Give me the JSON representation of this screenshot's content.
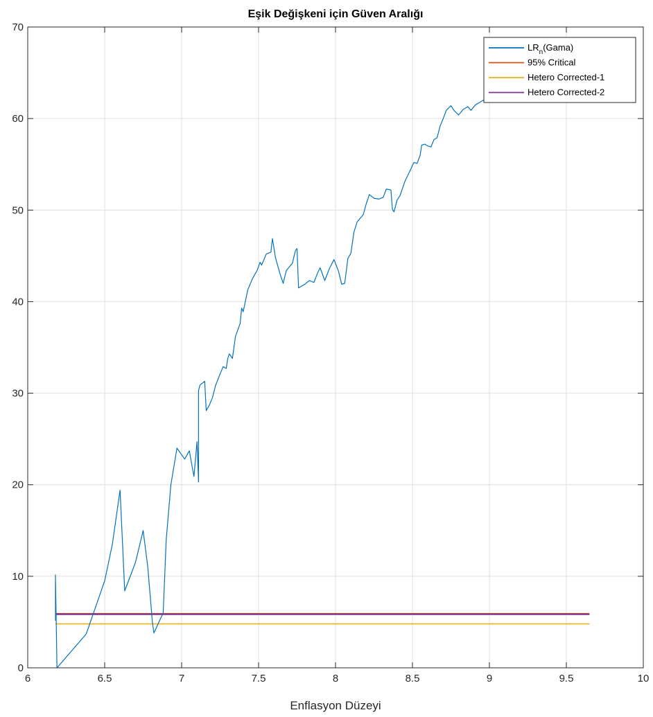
{
  "chart_data": {
    "type": "line",
    "title": "Eşik Değişkeni için Güven Aralığı",
    "xlabel": "Enflasyon Düzeyi",
    "ylabel": "",
    "xlim": [
      6,
      10
    ],
    "ylim": [
      0,
      70
    ],
    "xticks": [
      6,
      6.5,
      7,
      7.5,
      8,
      8.5,
      9,
      9.5,
      10
    ],
    "xtick_labels": [
      "6",
      "6.5",
      "7",
      "7.5",
      "8",
      "8.5",
      "9",
      "9.5",
      "10"
    ],
    "yticks": [
      0,
      10,
      20,
      30,
      40,
      50,
      60,
      70
    ],
    "ytick_labels": [
      "0",
      "10",
      "20",
      "30",
      "40",
      "50",
      "60",
      "70"
    ],
    "grid": true,
    "legend_position": "top-right",
    "legend": [
      {
        "main": "LR",
        "sub": "n",
        "tail": "(Gama)",
        "color": "#0072BD"
      },
      {
        "main": "95% Critical",
        "sub": "",
        "tail": "",
        "color": "#D95319"
      },
      {
        "main": "Hetero Corrected-1",
        "sub": "",
        "tail": "",
        "color": "#EDB120"
      },
      {
        "main": "Hetero Corrected-2",
        "sub": "",
        "tail": "",
        "color": "#7E2F8E"
      }
    ],
    "series": [
      {
        "name": "LRn(Gama)",
        "color": "#0072BD",
        "x": [
          6.18,
          6.18,
          6.18,
          6.19,
          6.38,
          6.5,
          6.55,
          6.6,
          6.63,
          6.7,
          6.75,
          6.78,
          6.81,
          6.82,
          6.88,
          6.9,
          6.93,
          6.95,
          6.97,
          7.02,
          7.05,
          7.08,
          7.1,
          7.11,
          7.11,
          7.12,
          7.15,
          7.16,
          7.18,
          7.2,
          7.22,
          7.25,
          7.27,
          7.29,
          7.3,
          7.31,
          7.33,
          7.35,
          7.38,
          7.39,
          7.4,
          7.43,
          7.46,
          7.49,
          7.51,
          7.52,
          7.55,
          7.58,
          7.59,
          7.61,
          7.64,
          7.66,
          7.68,
          7.7,
          7.72,
          7.74,
          7.75,
          7.76,
          7.8,
          7.83,
          7.86,
          7.88,
          7.9,
          7.93,
          7.96,
          7.99,
          8.02,
          8.04,
          8.06,
          8.08,
          8.1,
          8.12,
          8.14,
          8.18,
          8.2,
          8.22,
          8.25,
          8.28,
          8.31,
          8.33,
          8.36,
          8.37,
          8.38,
          8.4,
          8.42,
          8.45,
          8.47,
          8.49,
          8.5,
          8.51,
          8.53,
          8.55,
          8.56,
          8.58,
          8.6,
          8.62,
          8.64,
          8.66,
          8.68,
          8.7,
          8.72,
          8.75,
          8.77,
          8.8,
          8.83,
          8.86,
          8.88,
          8.91,
          8.94,
          8.97,
          9.0
        ],
        "y": [
          10.2,
          5.2,
          10,
          0,
          3.7,
          9.5,
          13.5,
          19.4,
          8.4,
          11.5,
          15.0,
          11.0,
          5.0,
          3.8,
          6.0,
          14.0,
          20.0,
          22.0,
          24.0,
          22.8,
          23.7,
          20.9,
          24.7,
          20.3,
          30.3,
          30.9,
          31.3,
          28.1,
          28.7,
          29.5,
          30.8,
          32.1,
          32.9,
          32.7,
          33.8,
          34.3,
          33.8,
          36.2,
          37.6,
          39.3,
          38.9,
          41.3,
          42.5,
          43.4,
          44.3,
          44.0,
          45.2,
          45.4,
          46.9,
          44.8,
          43.0,
          42.0,
          43.4,
          43.8,
          44.2,
          45.6,
          45.8,
          41.5,
          41.9,
          42.3,
          42.1,
          43.0,
          43.7,
          42.3,
          43.6,
          44.6,
          43.3,
          41.9,
          42.0,
          44.7,
          45.3,
          47.6,
          48.7,
          49.5,
          50.7,
          51.7,
          51.3,
          51.2,
          51.4,
          52.3,
          52.2,
          50.1,
          49.8,
          51.1,
          51.6,
          53.1,
          53.8,
          54.5,
          54.9,
          55.2,
          55.1,
          56.0,
          57.1,
          57.2,
          57.0,
          56.9,
          57.7,
          57.9,
          59.2,
          60.0,
          60.9,
          61.4,
          60.9,
          60.4,
          61.0,
          61.3,
          60.9,
          61.5,
          61.8,
          62.1,
          62.3
        ]
      },
      {
        "name": "95% Critical",
        "color": "#D95319",
        "x": [
          6.18,
          9.65
        ],
        "y": [
          5.9,
          5.9
        ]
      },
      {
        "name": "Hetero Corrected-1",
        "color": "#EDB120",
        "x": [
          6.18,
          9.65
        ],
        "y": [
          4.8,
          4.8
        ]
      },
      {
        "name": "Hetero Corrected-2",
        "color": "#7E2F8E",
        "x": [
          6.18,
          9.65
        ],
        "y": [
          5.85,
          5.85
        ]
      }
    ]
  }
}
